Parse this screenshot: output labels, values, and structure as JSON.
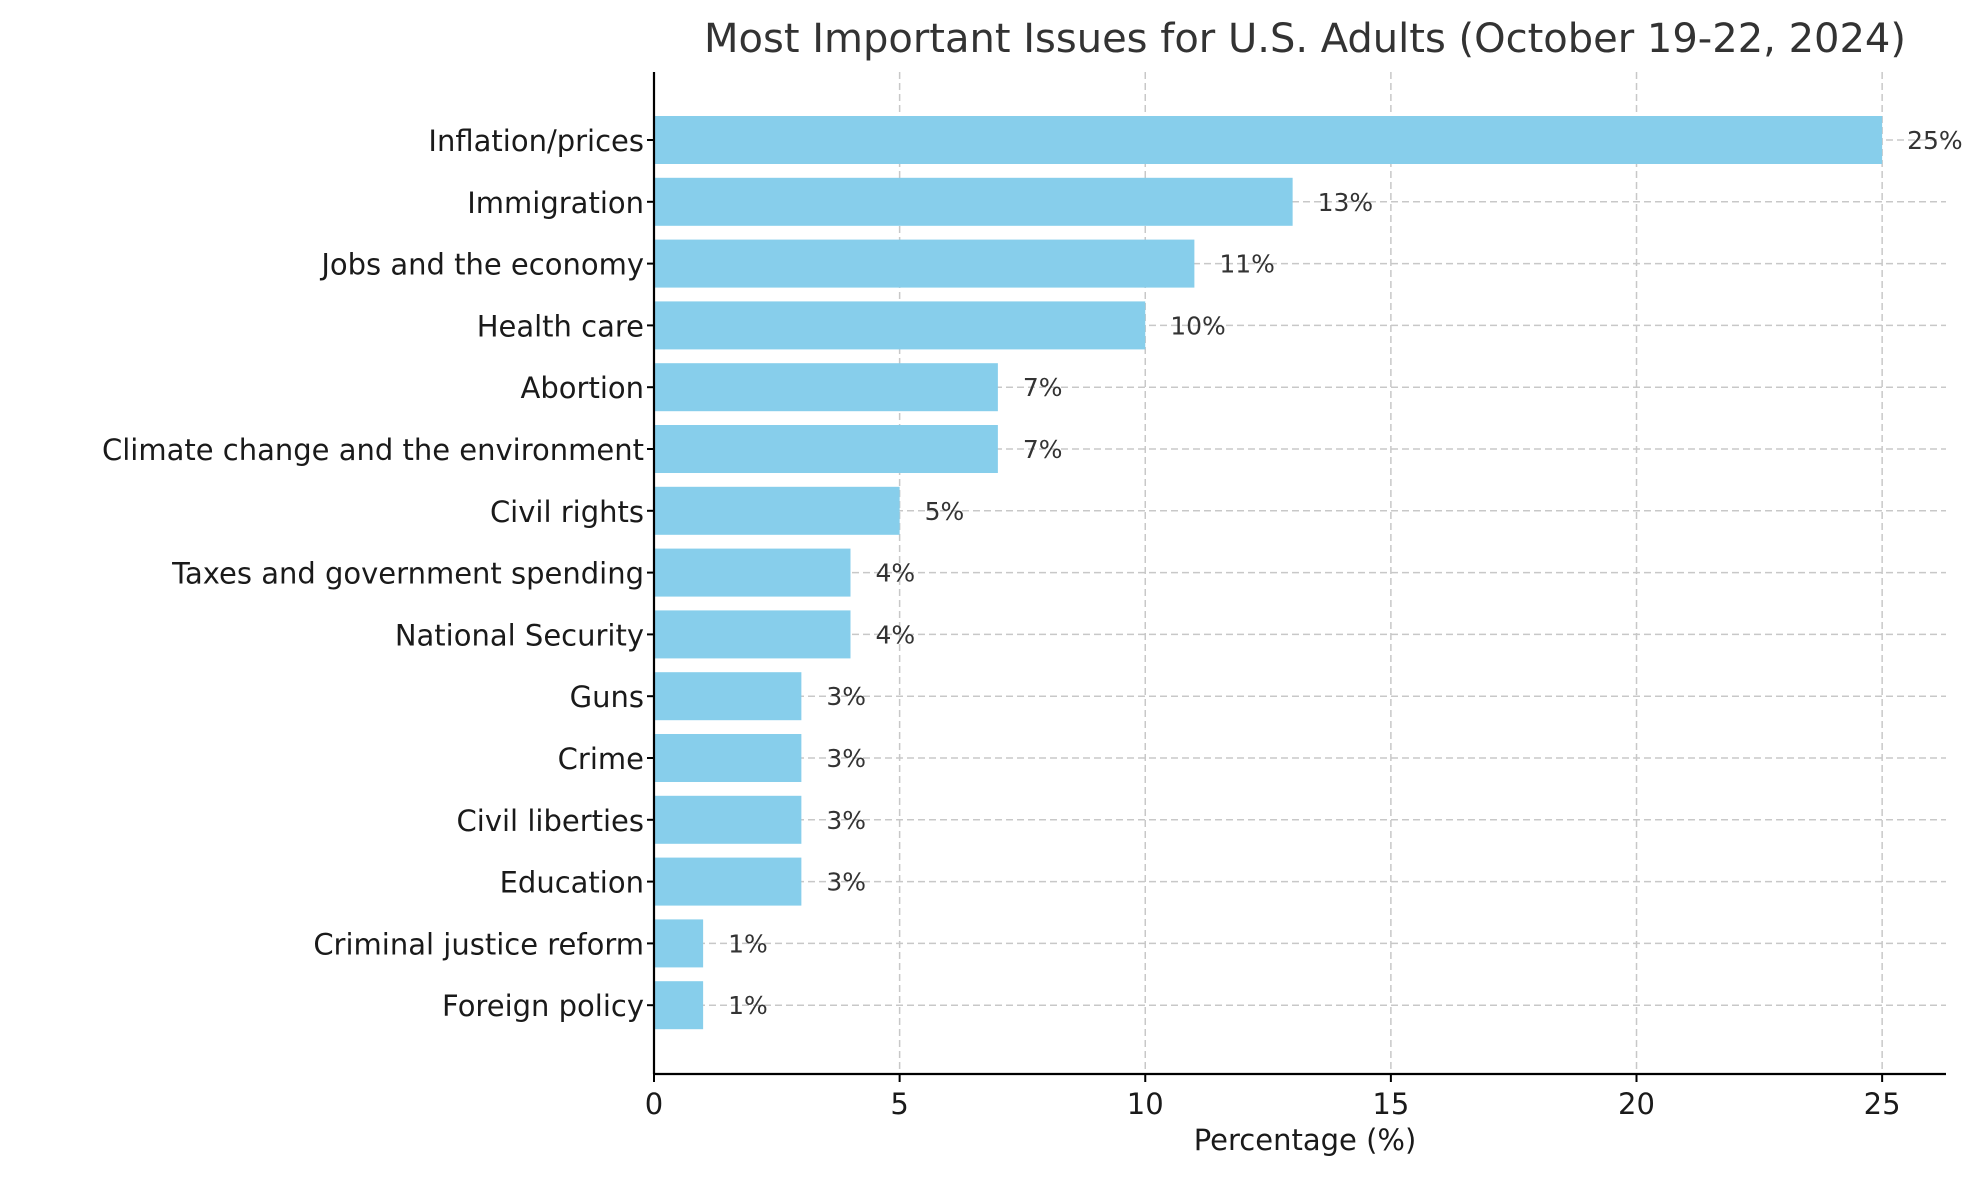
{
  "chart_data": {
    "type": "bar",
    "orientation": "horizontal",
    "title": "Most Important Issues for U.S. Adults (October 19-22, 2024)",
    "xlabel": "Percentage (%)",
    "ylabel": "",
    "xlim": [
      0,
      26.3
    ],
    "xticks": [
      0,
      5,
      10,
      15,
      20,
      25
    ],
    "categories": [
      "Inflation/prices",
      "Immigration",
      "Jobs and the economy",
      "Health care",
      "Abortion",
      "Climate change and the environment",
      "Civil rights",
      "Taxes and government spending",
      "National Security",
      "Guns",
      "Crime",
      "Civil liberties",
      "Education",
      "Criminal justice reform",
      "Foreign policy"
    ],
    "values": [
      25,
      13,
      11,
      10,
      7,
      7,
      5,
      4,
      4,
      3,
      3,
      3,
      3,
      1,
      1
    ],
    "data_labels": [
      "25%",
      "13%",
      "11%",
      "10%",
      "7%",
      "7%",
      "5%",
      "4%",
      "4%",
      "3%",
      "3%",
      "3%",
      "3%",
      "1%",
      "1%"
    ],
    "bar_color": "#87ceeb",
    "grid": true,
    "grid_style": "dashed",
    "legend": "none"
  }
}
